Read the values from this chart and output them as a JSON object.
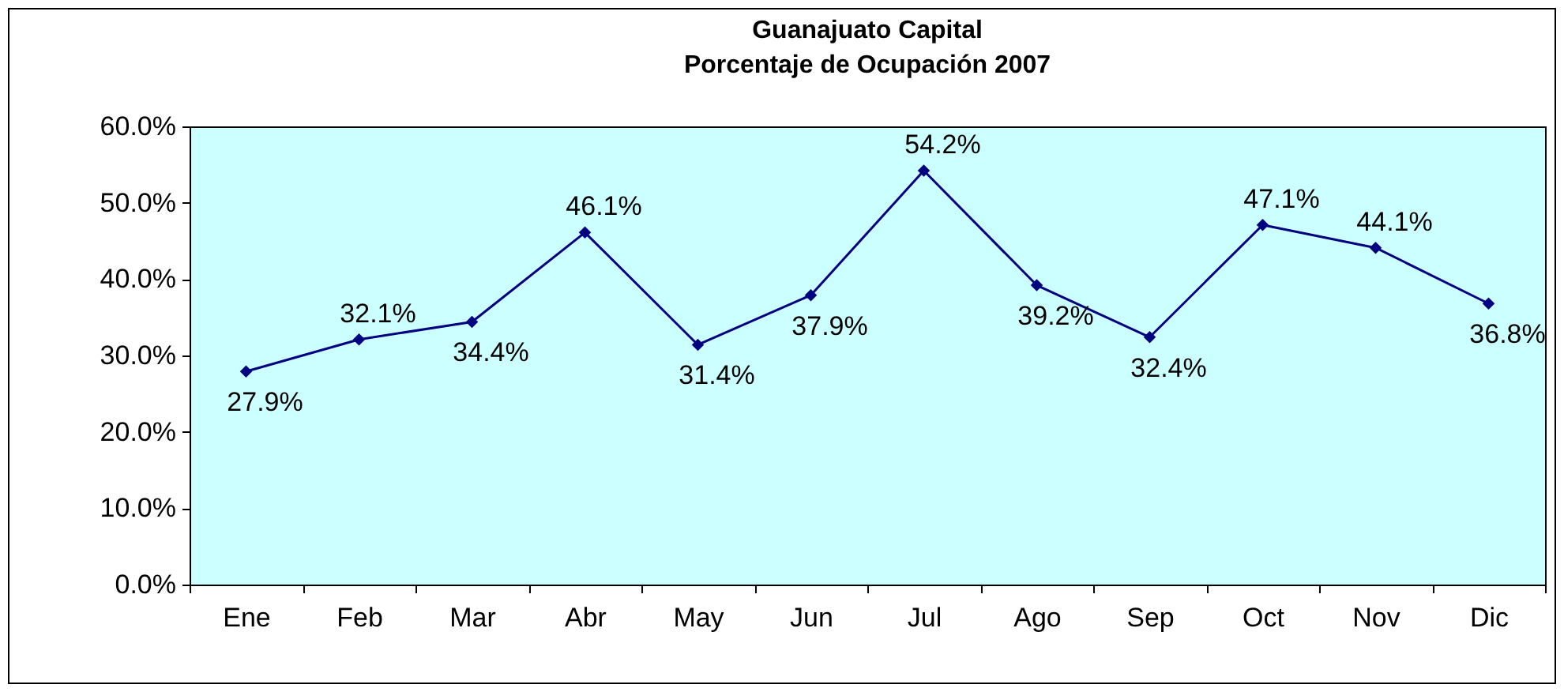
{
  "chart_data": {
    "type": "line",
    "title": "Guanajuato Capital",
    "subtitle": "Porcentaje de Ocupación 2007",
    "categories": [
      "Ene",
      "Feb",
      "Mar",
      "Abr",
      "May",
      "Jun",
      "Jul",
      "Ago",
      "Sep",
      "Oct",
      "Nov",
      "Dic"
    ],
    "series": [
      {
        "color": "#000080",
        "values": [
          27.9,
          32.1,
          34.4,
          46.1,
          31.4,
          37.9,
          54.2,
          39.2,
          32.4,
          47.1,
          44.1,
          36.8
        ],
        "value_labels": [
          "27.9%",
          "32.1%",
          "34.4%",
          "46.1%",
          "31.4%",
          "37.9%",
          "54.2%",
          "39.2%",
          "32.4%",
          "47.1%",
          "44.1%",
          "36.8%"
        ]
      }
    ],
    "ylim": [
      0,
      60
    ],
    "yticks": [
      {
        "value": 0,
        "label": "0.0%"
      },
      {
        "value": 10,
        "label": "10.0%"
      },
      {
        "value": 20,
        "label": "20.0%"
      },
      {
        "value": 30,
        "label": "30.0%"
      },
      {
        "value": 40,
        "label": "40.0%"
      },
      {
        "value": 50,
        "label": "50.0%"
      },
      {
        "value": 60,
        "label": "60.0%"
      }
    ],
    "grid": false,
    "marker": "diamond",
    "line_style": "solid"
  }
}
